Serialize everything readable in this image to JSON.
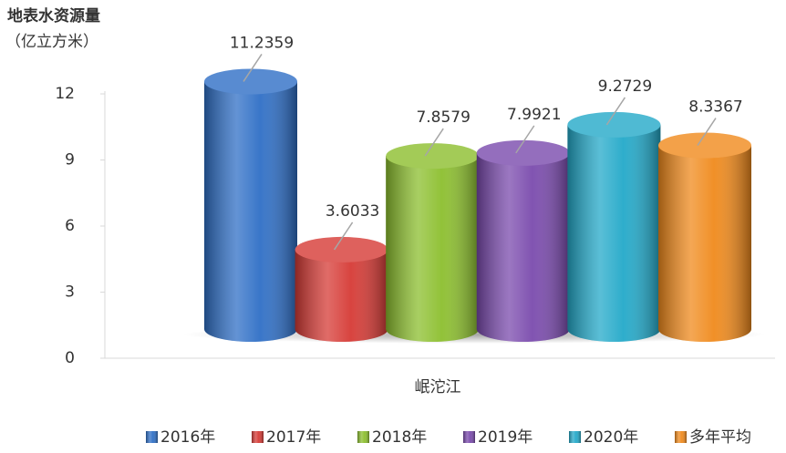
{
  "chart_data": {
    "type": "bar3d",
    "y_label": [
      "地表水资源量",
      "（亿立方米）"
    ],
    "categories": [
      "岷沱江"
    ],
    "series": [
      {
        "name": "2016年",
        "color": "#2f6fc6",
        "values": [
          11.2359
        ]
      },
      {
        "name": "2017年",
        "color": "#d63a35",
        "values": [
          3.6033
        ]
      },
      {
        "name": "2018年",
        "color": "#8cbf2e",
        "values": [
          7.8579
        ]
      },
      {
        "name": "2019年",
        "color": "#7a4aad",
        "values": [
          7.9921
        ]
      },
      {
        "name": "2020年",
        "color": "#23a9c9",
        "values": [
          9.2729
        ]
      },
      {
        "name": "多年平均",
        "color": "#f08a1c",
        "values": [
          8.3367
        ]
      }
    ],
    "ylim": [
      0,
      12
    ],
    "yticks": [
      0,
      3,
      6,
      9,
      12
    ],
    "legend": "bottom"
  }
}
